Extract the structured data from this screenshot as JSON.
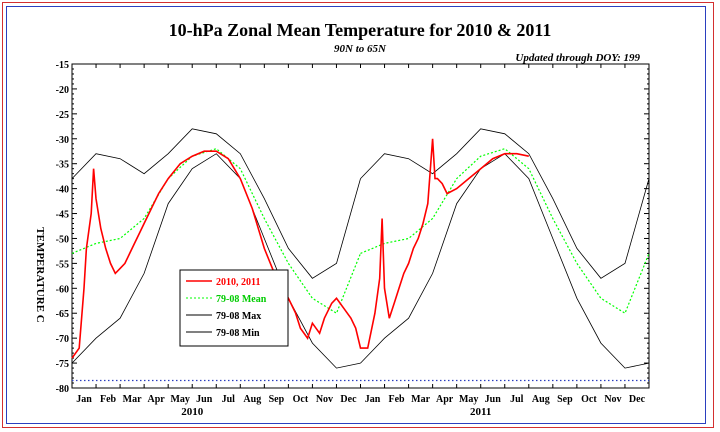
{
  "chart_data": {
    "type": "line",
    "title": "10-hPa Zonal Mean Temperature for 2010 & 2011",
    "subtitle": "90N to 65N",
    "update_note": "Updated through DOY: 199",
    "ylabel": "TEMPERATURE C",
    "ylim": [
      -80,
      -15
    ],
    "yticks": [
      -15,
      -20,
      -25,
      -30,
      -35,
      -40,
      -45,
      -50,
      -55,
      -60,
      -65,
      -70,
      -75,
      -80
    ],
    "month_labels": [
      "Jan",
      "Feb",
      "Mar",
      "Apr",
      "May",
      "Jun",
      "Jul",
      "Aug",
      "Sep",
      "Oct",
      "Nov",
      "Dec",
      "Jan",
      "Feb",
      "Mar",
      "Apr",
      "May",
      "Jun",
      "Jul",
      "Aug",
      "Sep",
      "Oct",
      "Nov",
      "Dec"
    ],
    "year_labels": [
      "2010",
      "2011"
    ],
    "reference_line": -78.5,
    "legend": [
      {
        "label": "2010, 2011",
        "color": "#ff0000",
        "dash": ""
      },
      {
        "label": "79-08 Mean",
        "color": "#00ff00",
        "dash": "2,2"
      },
      {
        "label": "79-08 Max",
        "color": "#000000",
        "dash": ""
      },
      {
        "label": "79-08 Min",
        "color": "#000000",
        "dash": ""
      }
    ],
    "climatology": {
      "months": [
        0,
        1,
        2,
        3,
        4,
        5,
        6,
        7,
        8,
        9,
        10,
        11,
        12
      ],
      "mean": [
        -53,
        -51,
        -50,
        -46,
        -38,
        -33.5,
        -32,
        -36,
        -46,
        -55,
        -62,
        -65,
        -53
      ],
      "max": [
        -38,
        -33,
        -34,
        -37,
        -33,
        -28,
        -29,
        -33,
        -42,
        -52,
        -58,
        -55,
        -38
      ],
      "min": [
        -75,
        -70,
        -66,
        -57,
        -43,
        -36,
        -33,
        -38,
        -50,
        -62,
        -71,
        -76,
        -75
      ]
    },
    "series_observed": {
      "name": "2010, 2011",
      "color": "#ff0000",
      "x_month_index": [
        0,
        0.3,
        0.5,
        0.6,
        0.8,
        0.9,
        1.0,
        1.2,
        1.4,
        1.6,
        1.8,
        2.0,
        2.2,
        2.4,
        2.6,
        2.8,
        3.0,
        3.3,
        3.6,
        4.0,
        4.5,
        5.0,
        5.5,
        6.0,
        6.5,
        7.0,
        7.5,
        8.0,
        8.5,
        9.0,
        9.3,
        9.5,
        9.8,
        10.0,
        10.3,
        10.5,
        10.8,
        11.0,
        11.3,
        11.6,
        11.8,
        12.0,
        12.3,
        12.6,
        12.8,
        12.9,
        13.0,
        13.2,
        13.4,
        13.6,
        13.8,
        14.0,
        14.2,
        14.4,
        14.6,
        14.8,
        15.0,
        15.1,
        15.2,
        15.4,
        15.6,
        16.0,
        16.5,
        17.0,
        17.5,
        18.0,
        18.5,
        19.0
      ],
      "y": [
        -74,
        -72,
        -60,
        -52,
        -45,
        -36,
        -42,
        -48,
        -52,
        -55,
        -57,
        -56,
        -55,
        -53,
        -51,
        -49,
        -47,
        -44,
        -41,
        -38,
        -35,
        -33.5,
        -32.5,
        -32.5,
        -34,
        -38,
        -44,
        -52,
        -58,
        -62,
        -65,
        -68,
        -70,
        -67,
        -69,
        -66,
        -63,
        -62,
        -64,
        -66,
        -68,
        -72,
        -72,
        -65,
        -58,
        -46,
        -60,
        -66,
        -63,
        -60,
        -57,
        -55,
        -52,
        -50,
        -47,
        -43,
        -30,
        -38,
        -38,
        -39,
        -41,
        -40,
        -38,
        -36,
        -34,
        -33,
        -33,
        -33.5
      ]
    }
  }
}
